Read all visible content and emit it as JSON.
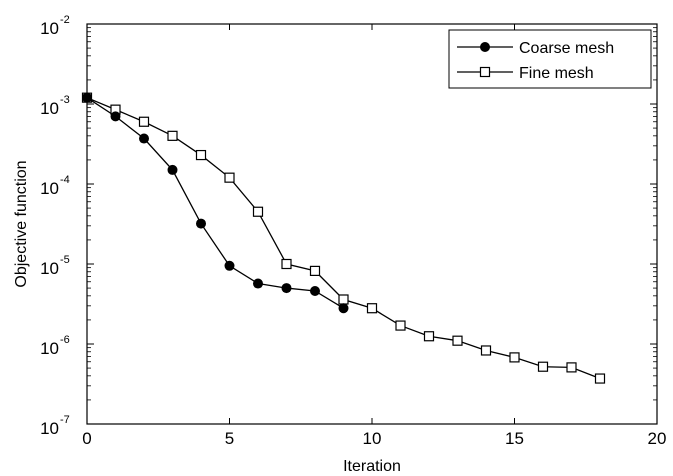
{
  "chart_data": {
    "type": "line",
    "title": "",
    "xlabel": "Iteration",
    "ylabel": "Objective function",
    "xlim": [
      0,
      20
    ],
    "ylim": [
      1e-07,
      0.01
    ],
    "yscale": "log",
    "grid": false,
    "legend_position": "top-right",
    "xticks": [
      {
        "value": 0,
        "label": "0"
      },
      {
        "value": 5,
        "label": "5"
      },
      {
        "value": 10,
        "label": "10"
      },
      {
        "value": 15,
        "label": "15"
      },
      {
        "value": 20,
        "label": "20"
      }
    ],
    "yticks": [
      {
        "value": 1e-07,
        "base": "10",
        "exp": "-7"
      },
      {
        "value": 1e-06,
        "base": "10",
        "exp": "-6"
      },
      {
        "value": 1e-05,
        "base": "10",
        "exp": "-5"
      },
      {
        "value": 0.0001,
        "base": "10",
        "exp": "-4"
      },
      {
        "value": 0.001,
        "base": "10",
        "exp": "-3"
      },
      {
        "value": 0.01,
        "base": "10",
        "exp": "-2"
      }
    ],
    "series": [
      {
        "name": "Coarse mesh",
        "marker": "filled-circle",
        "color": "#000000",
        "x": [
          0,
          1,
          2,
          3,
          4,
          5,
          6,
          7,
          8,
          9
        ],
        "y": [
          0.0012,
          0.0007,
          0.00037,
          0.00015,
          3.2e-05,
          9.5e-06,
          5.7e-06,
          5e-06,
          4.6e-06,
          2.8e-06
        ]
      },
      {
        "name": "Fine mesh",
        "marker": "open-square",
        "color": "#000000",
        "x": [
          0,
          1,
          2,
          3,
          4,
          5,
          6,
          7,
          8,
          9,
          10,
          11,
          12,
          13,
          14,
          15,
          16,
          17,
          18
        ],
        "y": [
          0.0012,
          0.00085,
          0.0006,
          0.0004,
          0.00023,
          0.00012,
          4.5e-05,
          1e-05,
          8.2e-06,
          3.6e-06,
          2.8e-06,
          1.7e-06,
          1.25e-06,
          1.1e-06,
          8.3e-07,
          6.8e-07,
          5.2e-07,
          5.1e-07,
          3.7e-07
        ]
      }
    ]
  }
}
